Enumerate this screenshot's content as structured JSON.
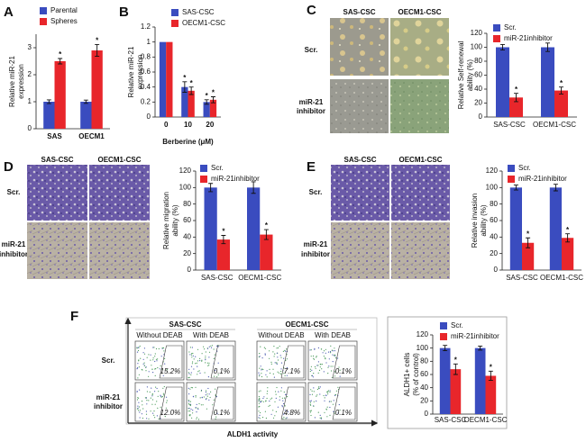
{
  "chart_data": [
    {
      "type": "bar",
      "panel": "A",
      "ylabel": [
        "Relative miR-21",
        "expression"
      ],
      "categories": [
        "SAS",
        "OECM1"
      ],
      "series": [
        {
          "name": "Parental",
          "color": "#3a4cbf",
          "values": [
            1,
            1
          ],
          "errors": [
            0.07,
            0.06
          ],
          "significance": [
            null,
            null
          ]
        },
        {
          "name": "Spheres",
          "color": "#e8262b",
          "values": [
            2.5,
            2.9
          ],
          "errors": [
            0.1,
            0.22
          ],
          "significance": [
            "*",
            "*"
          ]
        }
      ],
      "ylim": [
        0,
        3.5
      ],
      "yticks": [
        0,
        1,
        2,
        3
      ]
    },
    {
      "type": "bar",
      "panel": "B",
      "xlabel": "Berberine (μM)",
      "ylabel": [
        "Relative miR-21",
        "expression"
      ],
      "categories": [
        "0",
        "10",
        "20"
      ],
      "series": [
        {
          "name": "SAS-CSC",
          "color": "#3a4cbf",
          "values": [
            1,
            0.4,
            0.2
          ],
          "errors": [
            null,
            0.07,
            0.03
          ],
          "significance": [
            null,
            "*",
            "*"
          ]
        },
        {
          "name": "OECM1-CSC",
          "color": "#e8262b",
          "values": [
            1,
            0.35,
            0.23
          ],
          "errors": [
            null,
            0.05,
            0.04
          ],
          "significance": [
            null,
            "*",
            "*"
          ]
        }
      ],
      "ylim": [
        0,
        1.2
      ],
      "yticks": [
        0,
        0.2,
        0.4,
        0.6,
        0.8,
        1,
        1.2
      ]
    },
    {
      "type": "bar",
      "panel": "C",
      "ylabel": [
        "Relative Self-renewal",
        "ability (%)"
      ],
      "categories": [
        "SAS-CSC",
        "OECM1-CSC"
      ],
      "series": [
        {
          "name": "Scr.",
          "color": "#3a4cbf",
          "values": [
            100,
            100
          ],
          "errors": [
            4,
            6
          ],
          "significance": [
            null,
            null
          ]
        },
        {
          "name": "miR-21inhibitor",
          "color": "#e8262b",
          "values": [
            28,
            38
          ],
          "errors": [
            6,
            5
          ],
          "significance": [
            "*",
            "*"
          ]
        }
      ],
      "ylim": [
        0,
        120
      ],
      "yticks": [
        0,
        20,
        40,
        60,
        80,
        100,
        120
      ]
    },
    {
      "type": "bar",
      "panel": "D",
      "ylabel": [
        "Relative migration",
        "ability (%)"
      ],
      "categories": [
        "SAS-CSC",
        "OECM1-CSC"
      ],
      "series": [
        {
          "name": "Scr.",
          "color": "#3a4cbf",
          "values": [
            100,
            100
          ],
          "errors": [
            5,
            7
          ],
          "significance": [
            null,
            null
          ]
        },
        {
          "name": "miR-21inhibitor",
          "color": "#e8262b",
          "values": [
            37,
            43
          ],
          "errors": [
            5,
            6
          ],
          "significance": [
            "*",
            "*"
          ]
        }
      ],
      "ylim": [
        0,
        120
      ],
      "yticks": [
        0,
        20,
        40,
        60,
        80,
        100,
        120
      ]
    },
    {
      "type": "bar",
      "panel": "E",
      "ylabel": [
        "Relative invasion",
        "ability (%)"
      ],
      "categories": [
        "SAS-CSC",
        "OECM1-CSC"
      ],
      "series": [
        {
          "name": "Scr.",
          "color": "#3a4cbf",
          "values": [
            100,
            100
          ],
          "errors": [
            3,
            4
          ],
          "significance": [
            null,
            null
          ]
        },
        {
          "name": "miR-21inhibitor",
          "color": "#e8262b",
          "values": [
            33,
            39
          ],
          "errors": [
            6,
            5
          ],
          "significance": [
            "*",
            "*"
          ]
        }
      ],
      "ylim": [
        0,
        120
      ],
      "yticks": [
        0,
        20,
        40,
        60,
        80,
        100,
        120
      ]
    },
    {
      "type": "bar",
      "panel": "F",
      "ylabel": [
        "ALDH1+ cells",
        "(% of control)"
      ],
      "categories": [
        "SAS-CSC",
        "OECM1-CSC"
      ],
      "series": [
        {
          "name": "Scr.",
          "color": "#3a4cbf",
          "values": [
            100,
            100
          ],
          "errors": [
            4,
            3
          ],
          "significance": [
            null,
            null
          ]
        },
        {
          "name": "miR-21inhibitor",
          "color": "#e8262b",
          "values": [
            68,
            58
          ],
          "errors": [
            8,
            7
          ],
          "significance": [
            "*",
            "*"
          ]
        }
      ],
      "ylim": [
        0,
        120
      ],
      "yticks": [
        0,
        20,
        40,
        60,
        80,
        100,
        120
      ]
    }
  ],
  "image_panels": [
    {
      "columns": [
        "SAS-CSC",
        "OECM1-CSC"
      ],
      "rows": [
        [
          "Scr."
        ],
        [
          "miR-21",
          "inhibitor"
        ]
      ]
    },
    {
      "columns": [
        "SAS-CSC",
        "OECM1-CSC"
      ],
      "rows": [
        [
          "Scr."
        ],
        [
          "miR-21",
          "inhibitor"
        ]
      ]
    },
    {
      "columns": [
        "SAS-CSC",
        "OECM1-CSC"
      ],
      "rows": [
        [
          "Scr."
        ],
        [
          "miR-21",
          "inhibitor"
        ]
      ]
    }
  ],
  "flow_panel": {
    "groups": [
      "SAS-CSC",
      "OECM1-CSC"
    ],
    "conditions": [
      "Without  DEAB",
      "With DEAB",
      "Without  DEAB",
      "With DEAB"
    ],
    "rows": [
      [
        "Scr."
      ],
      [
        "miR-21",
        "inhibitor"
      ]
    ],
    "percentages": [
      [
        "15.2%",
        "0.1%",
        "7.1%",
        "0.1%"
      ],
      [
        "12.0%",
        "0.1%",
        "4.8%",
        "0.1%"
      ]
    ],
    "xlabel": "ALDH1 activity"
  }
}
